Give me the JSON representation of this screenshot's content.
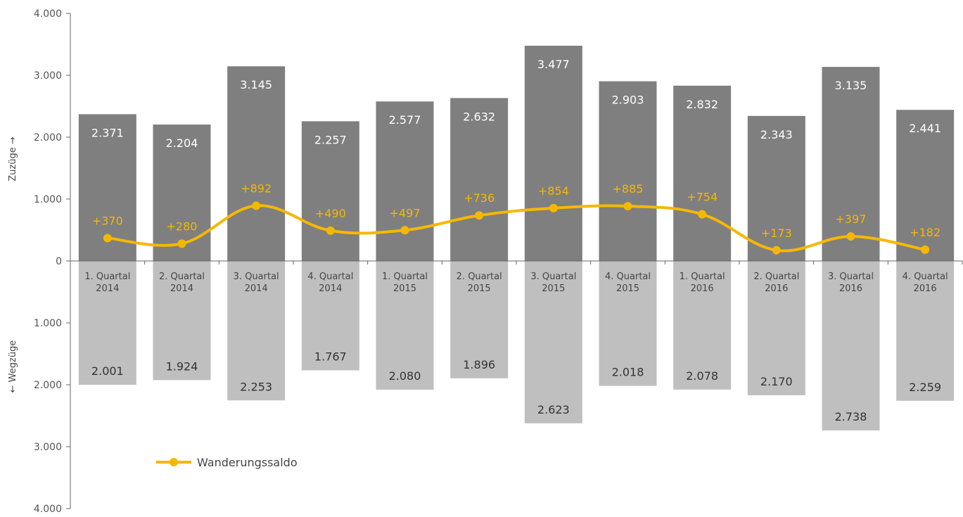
{
  "colors": {
    "zuzuege_bar": "#7f7f7f",
    "wegzuege_bar": "#bfbfbf",
    "saldo_line": "#f5b800",
    "axis": "#666666"
  },
  "chart_data": {
    "type": "bar",
    "categories": [
      [
        "1. Quartal",
        "2014"
      ],
      [
        "2. Quartal",
        "2014"
      ],
      [
        "3. Quartal",
        "2014"
      ],
      [
        "4. Quartal",
        "2014"
      ],
      [
        "1. Quartal",
        "2015"
      ],
      [
        "2. Quartal",
        "2015"
      ],
      [
        "3. Quartal",
        "2015"
      ],
      [
        "4. Quartal",
        "2015"
      ],
      [
        "1. Quartal",
        "2016"
      ],
      [
        "2. Quartal",
        "2016"
      ],
      [
        "3. Quartal",
        "2016"
      ],
      [
        "4. Quartal",
        "2016"
      ]
    ],
    "series": [
      {
        "kind": "bar-up",
        "values": [
          2371,
          2204,
          3145,
          2257,
          2577,
          2632,
          3477,
          2903,
          2832,
          2343,
          3135,
          2441
        ],
        "labels": [
          "2.371",
          "2.204",
          "3.145",
          "2.257",
          "2.577",
          "2.632",
          "3.477",
          "2.903",
          "2.832",
          "2.343",
          "3.135",
          "2.441"
        ]
      },
      {
        "kind": "bar-down",
        "values": [
          2001,
          1924,
          2253,
          1767,
          2080,
          1896,
          2623,
          2018,
          2078,
          2170,
          2738,
          2259
        ],
        "labels": [
          "2.001",
          "1.924",
          "2.253",
          "1.767",
          "2.080",
          "1.896",
          "2.623",
          "2.018",
          "2.078",
          "2.170",
          "2.738",
          "2.259"
        ]
      },
      {
        "name": "Wanderungssaldo",
        "kind": "line",
        "values": [
          370,
          280,
          892,
          490,
          497,
          736,
          854,
          885,
          754,
          173,
          397,
          182
        ],
        "labels": [
          "+370",
          "+280",
          "+892",
          "+490",
          "+497",
          "+736",
          "+854",
          "+885",
          "+754",
          "+173",
          "+397",
          "+182"
        ]
      }
    ],
    "y_ticks": [
      {
        "value": 4000,
        "label": "4.000"
      },
      {
        "value": 3000,
        "label": "3.000"
      },
      {
        "value": 2000,
        "label": "2.000"
      },
      {
        "value": 1000,
        "label": "1.000"
      },
      {
        "value": 0,
        "label": "0"
      },
      {
        "value": -1000,
        "label": "1.000"
      },
      {
        "value": -2000,
        "label": "2.000"
      },
      {
        "value": -3000,
        "label": "3.000"
      },
      {
        "value": -4000,
        "label": "4.000"
      }
    ],
    "ylim": [
      -4000,
      4000
    ],
    "ylabel_upper": "Zuzüge →",
    "ylabel_lower": "← Wegzüge",
    "legend": {
      "label": "Wanderungssaldo",
      "position": "bottom-left"
    },
    "grid": false
  }
}
